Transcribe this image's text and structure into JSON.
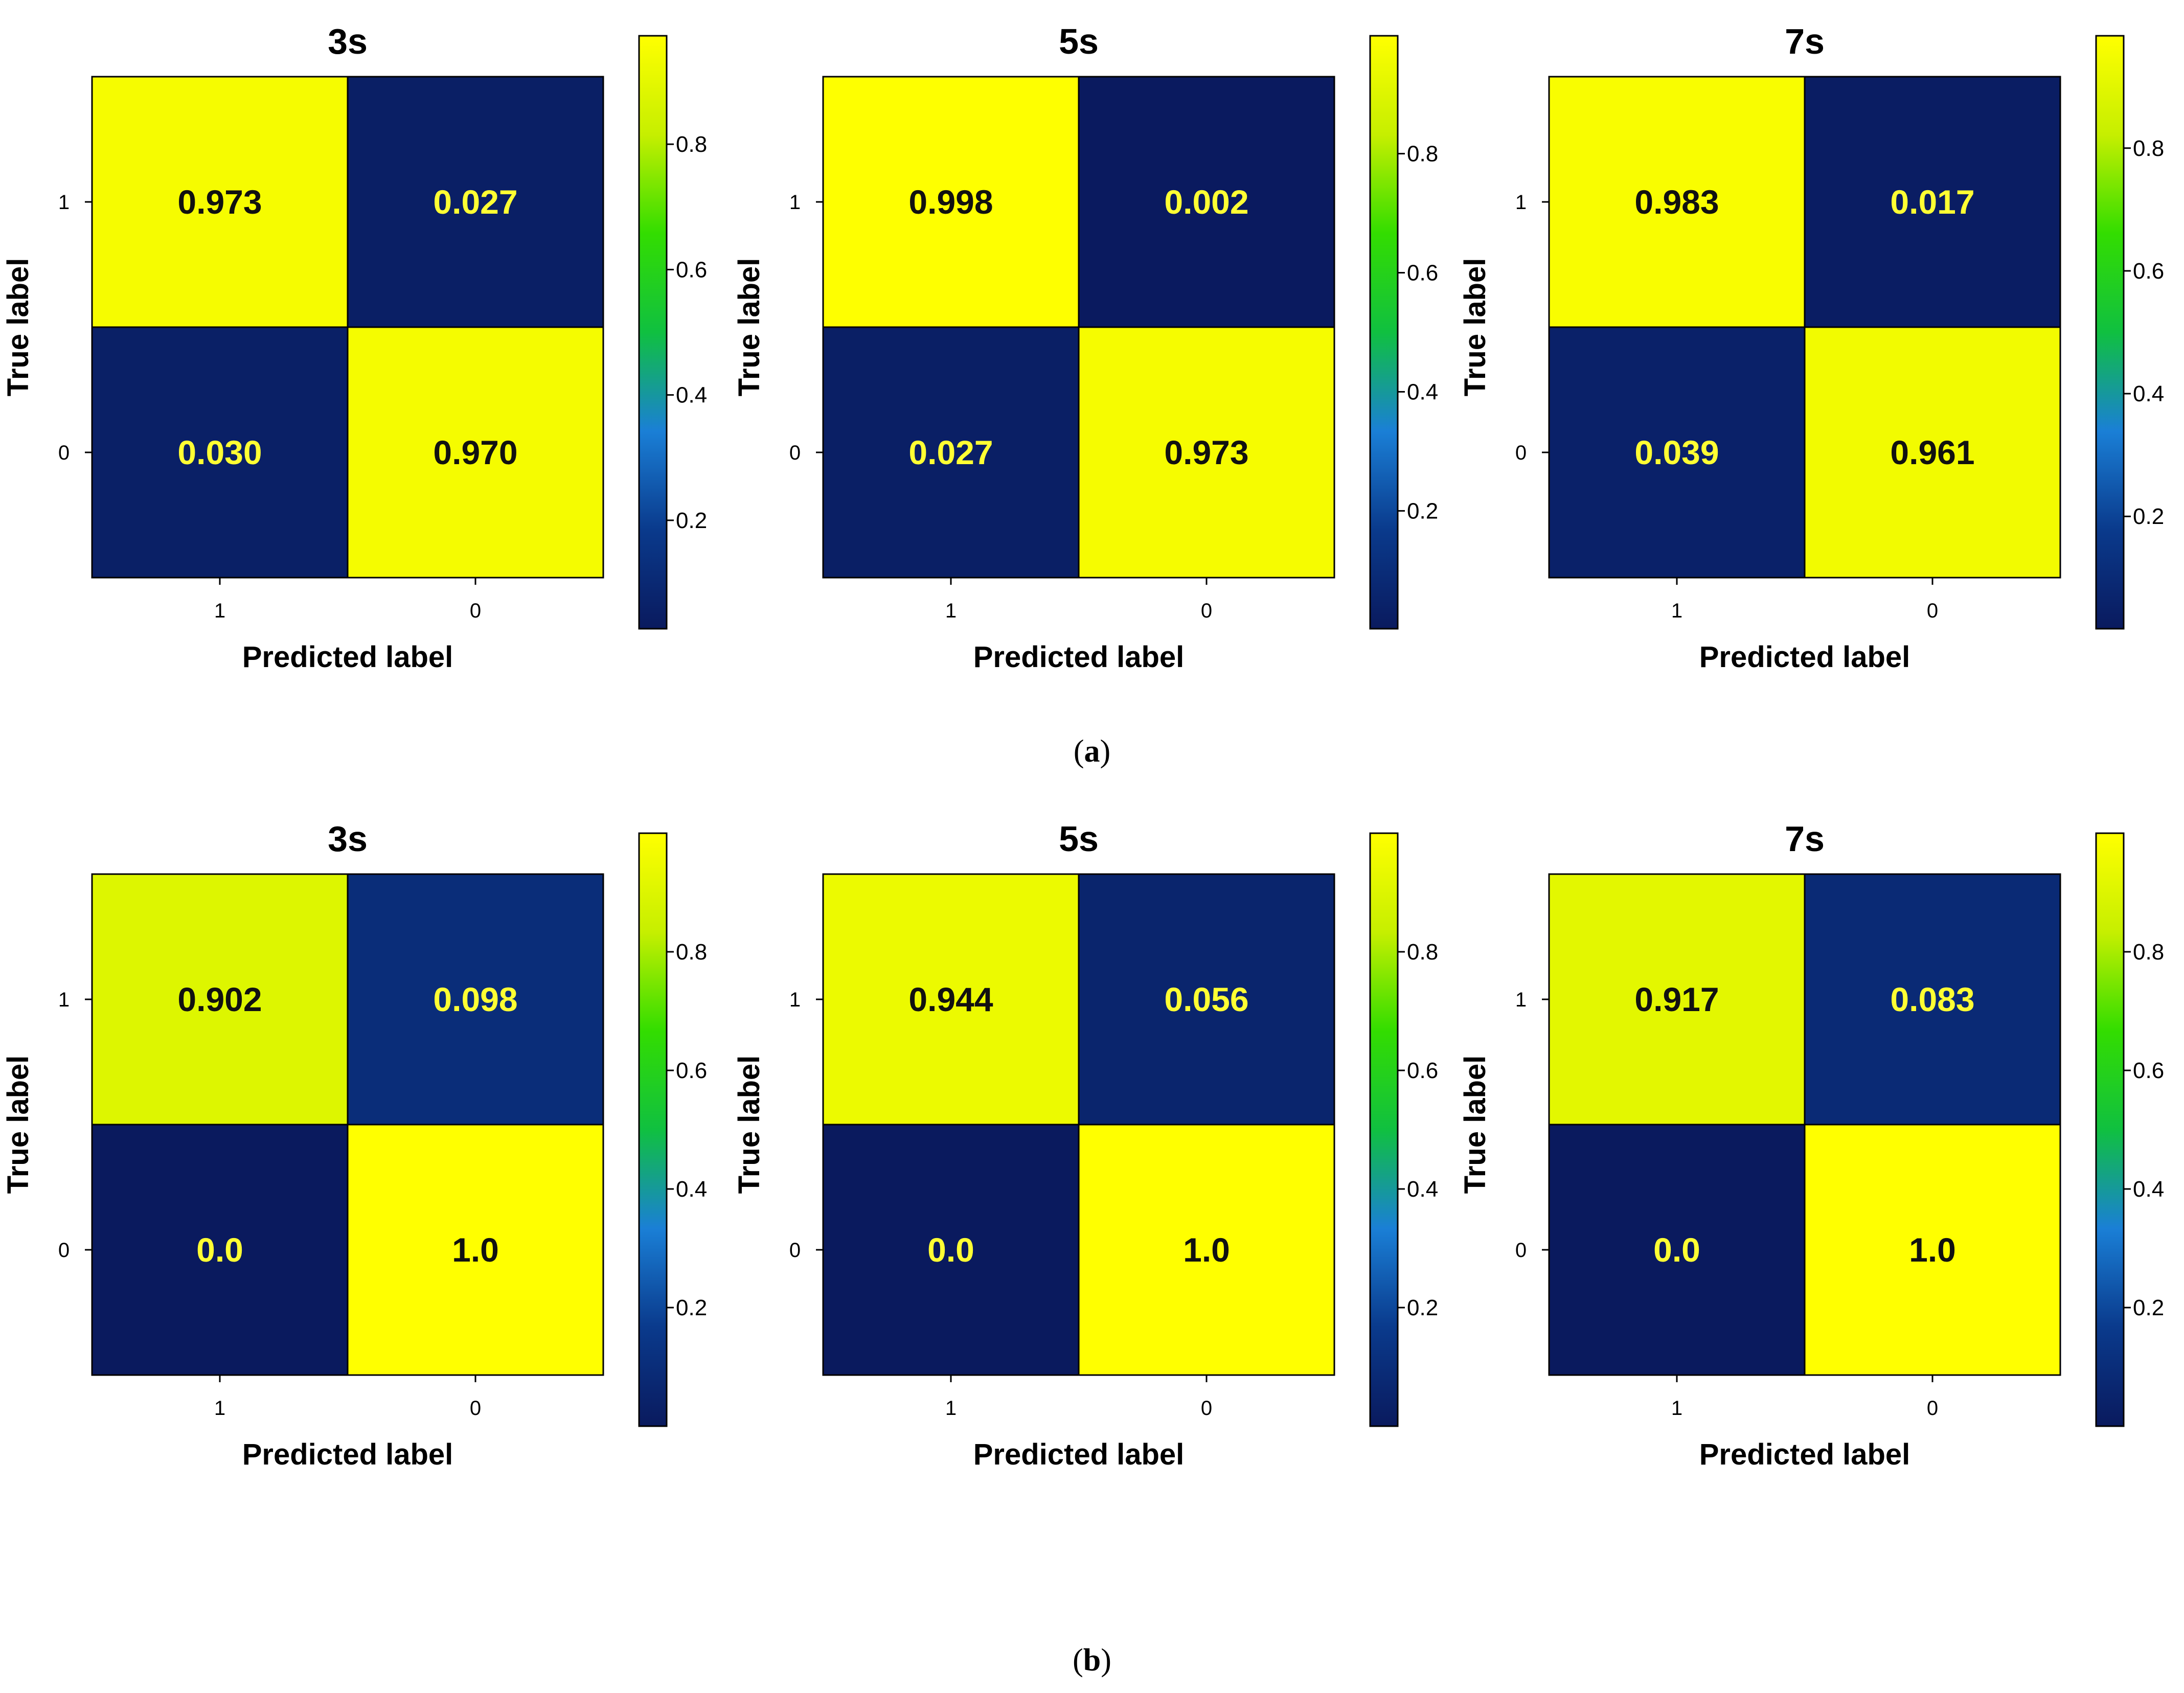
{
  "chart_data": [
    {
      "type": "heatmap",
      "panel": "a",
      "title": "3s",
      "xlabel": "Predicted label",
      "ylabel": "True label",
      "x_categories": [
        "1",
        "0"
      ],
      "y_categories": [
        "1",
        "0"
      ],
      "values": [
        [
          0.973,
          0.027
        ],
        [
          0.03,
          0.97
        ]
      ],
      "labels": [
        [
          "0.973",
          "0.027"
        ],
        [
          "0.030",
          "0.970"
        ]
      ],
      "colorbar": {
        "range": [
          0.027,
          0.973
        ],
        "ticks": [
          0.2,
          0.4,
          0.6,
          0.8
        ],
        "tick_labels": [
          "0.2",
          "0.4",
          "0.6",
          "0.8"
        ]
      }
    },
    {
      "type": "heatmap",
      "panel": "a",
      "title": "5s",
      "xlabel": "Predicted label",
      "ylabel": "True label",
      "x_categories": [
        "1",
        "0"
      ],
      "y_categories": [
        "1",
        "0"
      ],
      "values": [
        [
          0.998,
          0.002
        ],
        [
          0.027,
          0.973
        ]
      ],
      "labels": [
        [
          "0.998",
          "0.002"
        ],
        [
          "0.027",
          "0.973"
        ]
      ],
      "colorbar": {
        "range": [
          0.002,
          0.998
        ],
        "ticks": [
          0.2,
          0.4,
          0.6,
          0.8
        ],
        "tick_labels": [
          "0.2",
          "0.4",
          "0.6",
          "0.8"
        ]
      }
    },
    {
      "type": "heatmap",
      "panel": "a",
      "title": "7s",
      "xlabel": "Predicted label",
      "ylabel": "True label",
      "x_categories": [
        "1",
        "0"
      ],
      "y_categories": [
        "1",
        "0"
      ],
      "values": [
        [
          0.983,
          0.017
        ],
        [
          0.039,
          0.961
        ]
      ],
      "labels": [
        [
          "0.983",
          "0.017"
        ],
        [
          "0.039",
          "0.961"
        ]
      ],
      "colorbar": {
        "range": [
          0.017,
          0.983
        ],
        "ticks": [
          0.2,
          0.4,
          0.6,
          0.8
        ],
        "tick_labels": [
          "0.2",
          "0.4",
          "0.6",
          "0.8"
        ]
      }
    },
    {
      "type": "heatmap",
      "panel": "b",
      "title": "3s",
      "xlabel": "Predicted label",
      "ylabel": "True label",
      "x_categories": [
        "1",
        "0"
      ],
      "y_categories": [
        "1",
        "0"
      ],
      "values": [
        [
          0.902,
          0.098
        ],
        [
          0.0,
          1.0
        ]
      ],
      "labels": [
        [
          "0.902",
          "0.098"
        ],
        [
          "0.0",
          "1.0"
        ]
      ],
      "colorbar": {
        "range": [
          0.0,
          1.0
        ],
        "ticks": [
          0.2,
          0.4,
          0.6,
          0.8
        ],
        "tick_labels": [
          "0.2",
          "0.4",
          "0.6",
          "0.8"
        ]
      }
    },
    {
      "type": "heatmap",
      "panel": "b",
      "title": "5s",
      "xlabel": "Predicted label",
      "ylabel": "True label",
      "x_categories": [
        "1",
        "0"
      ],
      "y_categories": [
        "1",
        "0"
      ],
      "values": [
        [
          0.944,
          0.056
        ],
        [
          0.0,
          1.0
        ]
      ],
      "labels": [
        [
          "0.944",
          "0.056"
        ],
        [
          "0.0",
          "1.0"
        ]
      ],
      "colorbar": {
        "range": [
          0.0,
          1.0
        ],
        "ticks": [
          0.2,
          0.4,
          0.6,
          0.8
        ],
        "tick_labels": [
          "0.2",
          "0.4",
          "0.6",
          "0.8"
        ]
      }
    },
    {
      "type": "heatmap",
      "panel": "b",
      "title": "7s",
      "xlabel": "Predicted label",
      "ylabel": "True label",
      "x_categories": [
        "1",
        "0"
      ],
      "y_categories": [
        "1",
        "0"
      ],
      "values": [
        [
          0.917,
          0.083
        ],
        [
          0.0,
          1.0
        ]
      ],
      "labels": [
        [
          "0.917",
          "0.083"
        ],
        [
          "0.0",
          "1.0"
        ]
      ],
      "colorbar": {
        "range": [
          0.0,
          1.0
        ],
        "ticks": [
          0.2,
          0.4,
          0.6,
          0.8
        ],
        "tick_labels": [
          "0.2",
          "0.4",
          "0.6",
          "0.8"
        ]
      }
    }
  ],
  "panel_captions": [
    "a",
    "b"
  ],
  "colormap": {
    "name": "navy-blue-green-yellow",
    "stops": [
      "#0a1a5e",
      "#0a3a8c",
      "#1a7fd6",
      "#10c040",
      "#33dd00",
      "#c6ef00",
      "#ffff00"
    ]
  },
  "text_colors": {
    "on_dark": "#ffff33",
    "on_light": "#111111"
  }
}
